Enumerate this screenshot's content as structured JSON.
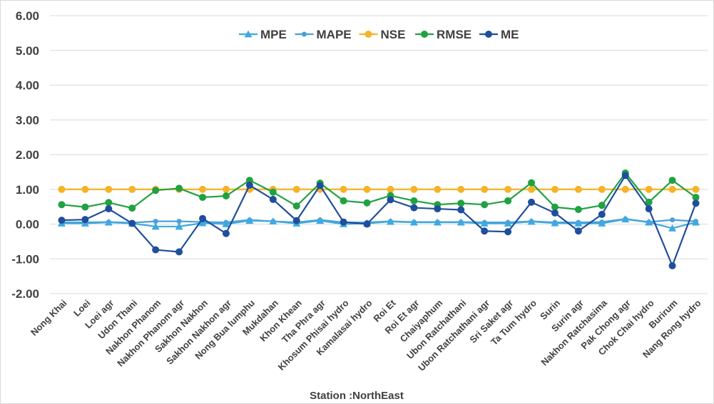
{
  "chart_data": {
    "type": "line",
    "xlabel": "Station :NorthEast",
    "ylabel": "",
    "ylim": [
      -2,
      6
    ],
    "yticks": [
      "6.00",
      "5.00",
      "4.00",
      "3.00",
      "2.00",
      "1.00",
      "0.00",
      "-1.00",
      "-2.00"
    ],
    "ytick_values": [
      6,
      5,
      4,
      3,
      2,
      1,
      0,
      -1,
      -2
    ],
    "grid": "horizontal",
    "legend_position": "top",
    "categories": [
      "Nong Khai",
      "Loei",
      "Loei agr",
      "Udon Thani",
      "Nakhon Phanom",
      "Nakhon Phanom agr",
      "Sakhon Nakhon",
      "Sakhon Nakhon agr",
      "Nong Bua lumphu",
      "Mukdahan",
      "Khon Khean",
      "Tha Phra agr",
      "Khosum Phisai hydro",
      "Kamalasai hydro",
      "Roi Et",
      "Roi Et agr",
      "Chaiyaphum",
      "Ubon Ratchathani",
      "Ubon Ratchathani agr",
      "Sri Saket agr",
      "Ta Tum hydro",
      "Surin",
      "Surin agr",
      "Nakhon Ratchasima",
      "Pak Chong agr",
      "Chok Chai hydro",
      "Burirum",
      "Nang Rong hydro"
    ],
    "series": [
      {
        "name": "MPE",
        "color": "#3fa9e0",
        "marker": "triangle",
        "values": [
          0.02,
          0.02,
          0.05,
          0.02,
          -0.07,
          -0.07,
          0.03,
          0.0,
          0.1,
          0.08,
          0.02,
          0.1,
          0.0,
          0.02,
          0.07,
          0.05,
          0.05,
          0.05,
          0.02,
          0.02,
          0.07,
          0.03,
          0.02,
          0.02,
          0.14,
          0.05,
          -0.12,
          0.05
        ]
      },
      {
        "name": "MAPE",
        "color": "#4a9fd8",
        "marker": "circle-small",
        "values": [
          0.05,
          0.05,
          0.06,
          0.04,
          0.08,
          0.08,
          0.06,
          0.05,
          0.12,
          0.08,
          0.05,
          0.12,
          0.05,
          0.05,
          0.08,
          0.06,
          0.06,
          0.06,
          0.05,
          0.05,
          0.08,
          0.05,
          0.05,
          0.06,
          0.15,
          0.06,
          0.12,
          0.08
        ]
      },
      {
        "name": "NSE",
        "color": "#f5b326",
        "marker": "circle",
        "values": [
          1.0,
          1.0,
          1.0,
          1.0,
          1.0,
          1.0,
          1.0,
          1.0,
          1.0,
          1.0,
          1.0,
          1.0,
          1.0,
          1.0,
          1.0,
          1.0,
          1.0,
          1.0,
          1.0,
          1.0,
          1.0,
          1.0,
          1.0,
          1.0,
          1.0,
          1.0,
          1.0,
          1.0
        ]
      },
      {
        "name": "RMSE",
        "color": "#21a141",
        "marker": "circle",
        "values": [
          0.56,
          0.49,
          0.62,
          0.46,
          0.97,
          1.03,
          0.77,
          0.81,
          1.26,
          0.92,
          0.52,
          1.18,
          0.67,
          0.61,
          0.82,
          0.67,
          0.56,
          0.6,
          0.56,
          0.67,
          1.19,
          0.49,
          0.42,
          0.54,
          1.47,
          0.63,
          1.26,
          0.77
        ]
      },
      {
        "name": "ME",
        "color": "#1f4e9c",
        "marker": "circle",
        "values": [
          0.11,
          0.13,
          0.44,
          0.02,
          -0.74,
          -0.8,
          0.16,
          -0.27,
          1.12,
          0.71,
          0.1,
          1.11,
          0.06,
          0.0,
          0.7,
          0.47,
          0.44,
          0.41,
          -0.2,
          -0.22,
          0.63,
          0.32,
          -0.2,
          0.28,
          1.4,
          0.44,
          -1.2,
          0.6
        ]
      }
    ]
  }
}
